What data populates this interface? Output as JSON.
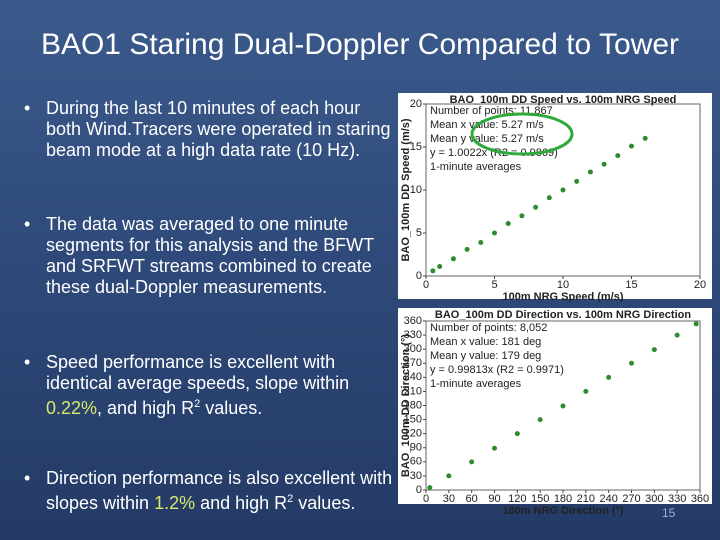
{
  "slide": {
    "title": "BAO1 Staring Dual-Doppler Compared to Tower",
    "bullets": [
      [
        {
          "text": "During the last 10 minutes of each hour both Wind.Tracers were operated in staring beam mode at a high data rate (10 Hz)."
        }
      ],
      [
        {
          "text": "The data was averaged to one minute segments for this analysis and the BFWT and SRFWT streams combined to create these dual-Doppler measurements."
        }
      ],
      [
        {
          "text": "Speed performance is excellent with identical average speeds, slope within "
        },
        {
          "text": "0.22%",
          "highlight": true
        },
        {
          "text": ", and high R"
        },
        {
          "text": "2",
          "sup": true
        },
        {
          "text": " values."
        }
      ],
      [
        {
          "text": "Direction performance is also excellent with slopes within "
        },
        {
          "text": "1.2%",
          "highlight": true
        },
        {
          "text": " and high R"
        },
        {
          "text": "2",
          "sup": true
        },
        {
          "text": " values."
        }
      ]
    ],
    "page_number": "15"
  },
  "chart_data": [
    {
      "type": "scatter",
      "title": "BAO_100m DD Speed vs. 100m NRG Speed",
      "annotations": [
        "Number of points: 11,867",
        "Mean x value: 5.27 m/s",
        "Mean y value: 5.27 m/s",
        "y = 1.0022x (R2 = 0.9869)",
        "1-minute averages"
      ],
      "xlabel": "100m NRG Speed (m/s)",
      "ylabel": "BAO_100m DD Speed (m/s)",
      "x": [
        0.5,
        1,
        2,
        3,
        4,
        5,
        6,
        7,
        8,
        9,
        10,
        11,
        12,
        13,
        14,
        15,
        16
      ],
      "series": [
        {
          "color": "#2e8b2e",
          "values": [
            0.6,
            1.1,
            2,
            3.1,
            3.9,
            5,
            6.1,
            7,
            8,
            9.1,
            10,
            11,
            12.1,
            13,
            14,
            15.1,
            16
          ]
        }
      ],
      "xlim": [
        0,
        20
      ],
      "xticks": [
        0,
        5,
        10,
        15,
        20
      ],
      "ylim": [
        0,
        20
      ],
      "yticks": [
        0,
        5,
        10,
        15,
        20
      ]
    },
    {
      "type": "scatter",
      "title": "BAO_100m DD Direction vs. 100m NRG Direction",
      "annotations": [
        "Number of points: 8,052",
        "Mean x value: 181 deg",
        "Mean y value: 179 deg",
        "y = 0.99813x (R2 = 0.9971)",
        "1-minute averages"
      ],
      "xlabel": "100m NRG Direction (°)",
      "ylabel": "BAO_100m DD Direction (°)",
      "x": [
        5,
        30,
        60,
        90,
        120,
        150,
        180,
        210,
        240,
        270,
        300,
        330,
        355
      ],
      "series": [
        {
          "color": "#2e8b2e",
          "values": [
            5,
            30,
            60,
            89,
            120,
            150,
            179,
            210,
            240,
            270,
            299,
            330,
            354
          ]
        }
      ],
      "xlim": [
        0,
        360
      ],
      "xticks": [
        0,
        30,
        60,
        90,
        120,
        150,
        180,
        210,
        240,
        270,
        300,
        330,
        360
      ],
      "ylim": [
        0,
        360
      ],
      "yticks": [
        0,
        30,
        60,
        90,
        120,
        150,
        180,
        210,
        240,
        270,
        300,
        330,
        360
      ]
    }
  ]
}
